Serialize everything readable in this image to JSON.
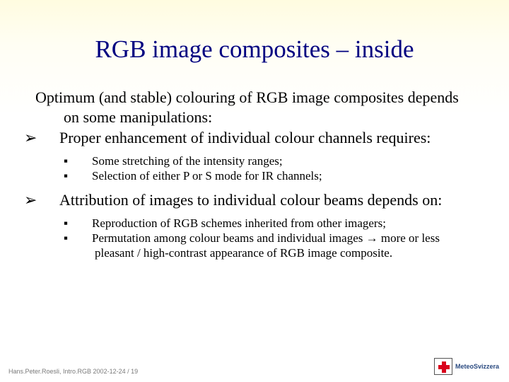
{
  "colors": {
    "title": "#000080",
    "body": "#000000",
    "footer": "#7a7a7a",
    "background_top": "#fffce0",
    "background_bottom": "#ffffff",
    "logo_cross": "#d9001b",
    "logo_text": "#2a4a80"
  },
  "typography": {
    "title_fontsize": 35,
    "body_fontsize": 22,
    "sub_fontsize": 17,
    "footer_fontsize": 9,
    "font_family": "Georgia / Times-like serif"
  },
  "bullet_marks": {
    "level1": "➢",
    "level2": "▪"
  },
  "title": "RGB image composites – inside",
  "intro": "Optimum (and stable) colouring of RGB image composites depends on some manipulations:",
  "points": [
    {
      "text": "Proper enhancement of individual colour channels requires:",
      "subs": [
        "Some stretching of the intensity ranges;",
        "Selection of either P or S mode for IR channels;"
      ]
    },
    {
      "text": "Attribution of images to individual colour beams depends on:",
      "subs": [
        "Reproduction of RGB schemes inherited from other imagers;",
        "Permutation among colour beams and individual images → more or less pleasant / high-contrast appearance of RGB image composite."
      ]
    }
  ],
  "footer": "Hans.Peter.Roesli, Intro.RGB 2002-12-24 / 19",
  "logo": {
    "text": "MeteoSvizzera"
  }
}
